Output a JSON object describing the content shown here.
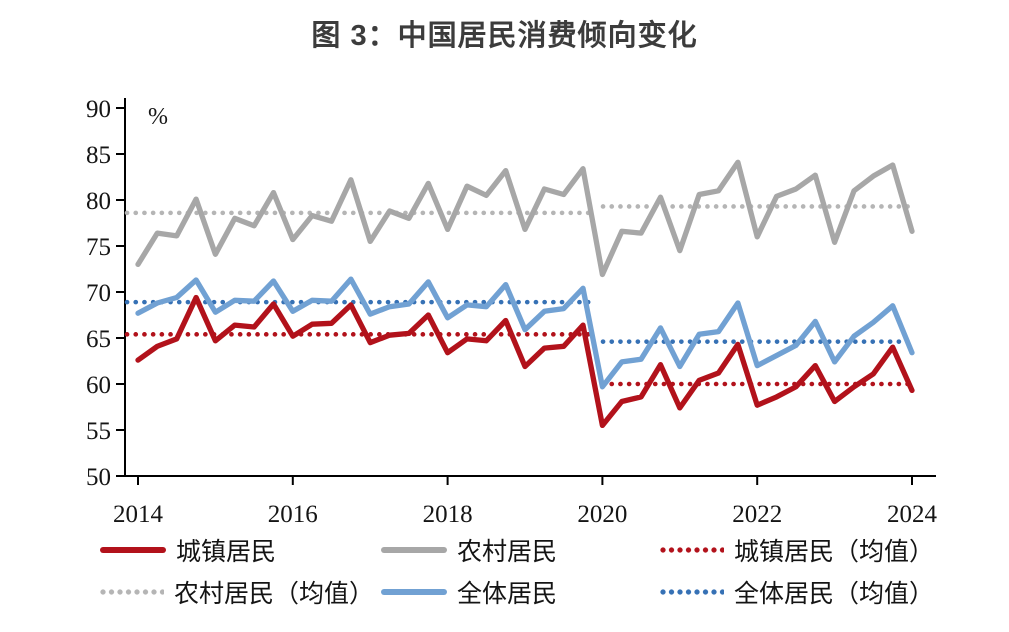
{
  "title": "图 3：中国居民消费倾向变化",
  "unit_label": "%",
  "chart_data": {
    "type": "line",
    "frequency": "quarterly",
    "x_start": "2014Q1",
    "x_end": "2024Q1",
    "x_tick_years": [
      2014,
      2016,
      2018,
      2020,
      2022,
      2024
    ],
    "y_ticks": [
      50,
      55,
      60,
      65,
      70,
      75,
      80,
      85,
      90
    ],
    "ylim": [
      50,
      90
    ],
    "grid": false,
    "legend_position": "bottom",
    "series": [
      {
        "name": "城镇居民",
        "color": "#B2121B",
        "style": "solid",
        "values": [
          62.6,
          64.1,
          64.9,
          69.4,
          64.7,
          66.4,
          66.2,
          68.7,
          65.2,
          66.5,
          66.6,
          68.6,
          64.5,
          65.3,
          65.5,
          67.5,
          63.4,
          64.9,
          64.7,
          66.9,
          61.9,
          63.9,
          64.1,
          66.4,
          55.5,
          58.1,
          58.6,
          62.1,
          57.4,
          60.4,
          61.2,
          64.3,
          57.7,
          58.6,
          59.7,
          62.0,
          58.1,
          59.7,
          61.1,
          64.0,
          59.3
        ]
      },
      {
        "name": "农村居民",
        "color": "#A7A7A7",
        "style": "solid",
        "values": [
          73.0,
          76.4,
          76.1,
          80.1,
          74.1,
          78.0,
          77.2,
          80.8,
          75.7,
          78.3,
          77.7,
          82.2,
          75.5,
          78.8,
          78.0,
          81.8,
          76.8,
          81.5,
          80.5,
          83.2,
          76.8,
          81.2,
          80.6,
          83.4,
          71.9,
          76.6,
          76.4,
          80.3,
          74.5,
          80.6,
          81.0,
          84.1,
          76.0,
          80.4,
          81.2,
          82.7,
          75.4,
          81.0,
          82.6,
          83.8,
          76.6
        ]
      },
      {
        "name": "全体居民",
        "color": "#71A1D3",
        "style": "solid",
        "values": [
          67.7,
          68.8,
          69.4,
          71.3,
          67.8,
          69.1,
          69.0,
          71.2,
          67.9,
          69.1,
          69.0,
          71.4,
          67.6,
          68.4,
          68.7,
          71.1,
          67.2,
          68.6,
          68.4,
          70.8,
          65.9,
          67.9,
          68.2,
          70.4,
          59.7,
          62.4,
          62.7,
          66.1,
          61.9,
          65.4,
          65.7,
          68.8,
          62.0,
          63.1,
          64.2,
          66.8,
          62.4,
          65.2,
          66.7,
          68.5,
          63.4
        ]
      }
    ],
    "mean_lines": [
      {
        "name": "城镇居民（均值）",
        "color": "#B2121B",
        "mean_2014_2019": 65.4,
        "mean_2020_2024": 60.0
      },
      {
        "name": "农村居民（均值）",
        "color": "#B5B5B5",
        "mean_2014_2019": 78.6,
        "mean_2020_2024": 79.3
      },
      {
        "name": "全体居民（均值）",
        "color": "#3671B5",
        "mean_2014_2019": 68.9,
        "mean_2020_2024": 64.6
      }
    ]
  },
  "legend": {
    "items": [
      {
        "label": "城镇居民",
        "swatch": "solid",
        "color": "#B2121B"
      },
      {
        "label": "农村居民",
        "swatch": "solid",
        "color": "#A7A7A7"
      },
      {
        "label": "城镇居民（均值）",
        "swatch": "dotted",
        "color": "#B2121B"
      },
      {
        "label": "农村居民（均值）",
        "swatch": "dotted",
        "color": "#B5B5B5"
      },
      {
        "label": "全体居民",
        "swatch": "solid",
        "color": "#71A1D3"
      },
      {
        "label": "全体居民（均值）",
        "swatch": "dotted",
        "color": "#3671B5"
      }
    ]
  }
}
